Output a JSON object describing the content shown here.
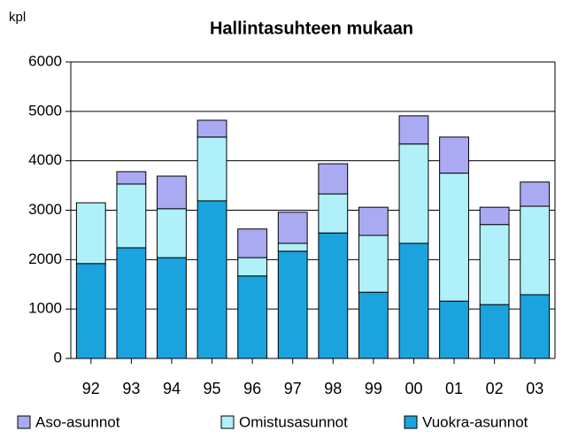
{
  "chart_data": {
    "type": "stacked-bar",
    "title": "Hallintasuhteen mukaan",
    "y_label": "kpl",
    "categories": [
      "92",
      "93",
      "94",
      "95",
      "96",
      "97",
      "98",
      "99",
      "00",
      "01",
      "02",
      "03"
    ],
    "series": [
      {
        "name": "Aso-asunnot",
        "color": "#aaaaf2",
        "values": [
          0,
          250,
          660,
          340,
          580,
          630,
          610,
          570,
          570,
          730,
          350,
          490
        ]
      },
      {
        "name": "Omistusasunnot",
        "color": "#b0f0f8",
        "values": [
          1230,
          1290,
          990,
          1290,
          370,
          160,
          790,
          1150,
          2010,
          2590,
          1620,
          1790
        ]
      },
      {
        "name": "Vuokra-asunnot",
        "color": "#1ba3de",
        "values": [
          1920,
          2240,
          2040,
          3190,
          1670,
          2170,
          2540,
          1340,
          2330,
          1160,
          1090,
          1290
        ]
      }
    ],
    "ylim": [
      0,
      6000
    ],
    "yticks": [
      0,
      1000,
      2000,
      3000,
      4000,
      5000,
      6000
    ],
    "grid": true
  }
}
